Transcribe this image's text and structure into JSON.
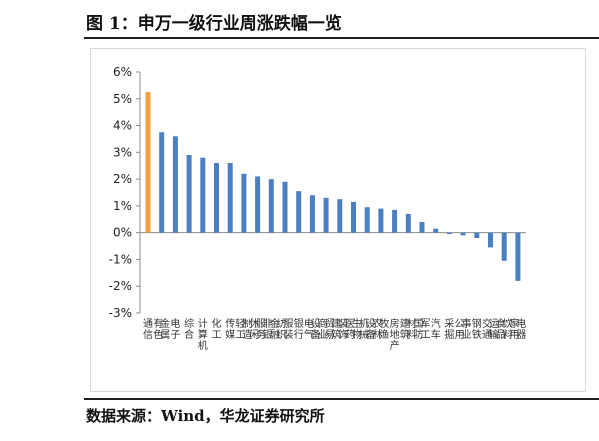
{
  "figure": {
    "title": "图 1：申万一级行业周涨跌幅一览",
    "source": "数据来源：Wind，华龙证券研究所"
  },
  "colors": {
    "highlight": "#f0a040",
    "bar": "#4a7fc1",
    "axis": "#8c8c8c",
    "rule": "#1e1e1e"
  },
  "chart_data": {
    "type": "bar",
    "title": "",
    "xlabel": "",
    "ylabel": "",
    "ylim": [
      -3,
      6
    ],
    "yticks": [
      "-3%",
      "-2%",
      "-1%",
      "0%",
      "1%",
      "2%",
      "3%",
      "4%",
      "5%",
      "6%"
    ],
    "grid": false,
    "categories": [
      "通信",
      "有色金属",
      "电子",
      "综合",
      "计算机",
      "化工",
      "传媒",
      "轻工制造",
      "休闲服务",
      "非银金融",
      "纺织服装",
      "银行",
      "电气设备",
      "商业贸易",
      "建筑装饰",
      "医药生物",
      "机械设备",
      "农林牧渔",
      "房地产",
      "建筑材料",
      "国防军工",
      "汽车",
      "采掘",
      "公用事业",
      "钢铁",
      "交通运输",
      "食品饮料",
      "家用电器"
    ],
    "values": [
      5.25,
      3.75,
      3.6,
      2.9,
      2.8,
      2.6,
      2.6,
      2.2,
      2.1,
      2.0,
      1.9,
      1.55,
      1.4,
      1.3,
      1.25,
      1.15,
      0.95,
      0.9,
      0.85,
      0.7,
      0.4,
      0.15,
      -0.05,
      -0.1,
      -0.2,
      -0.55,
      -1.05,
      -1.8
    ],
    "highlight_index": 0
  }
}
